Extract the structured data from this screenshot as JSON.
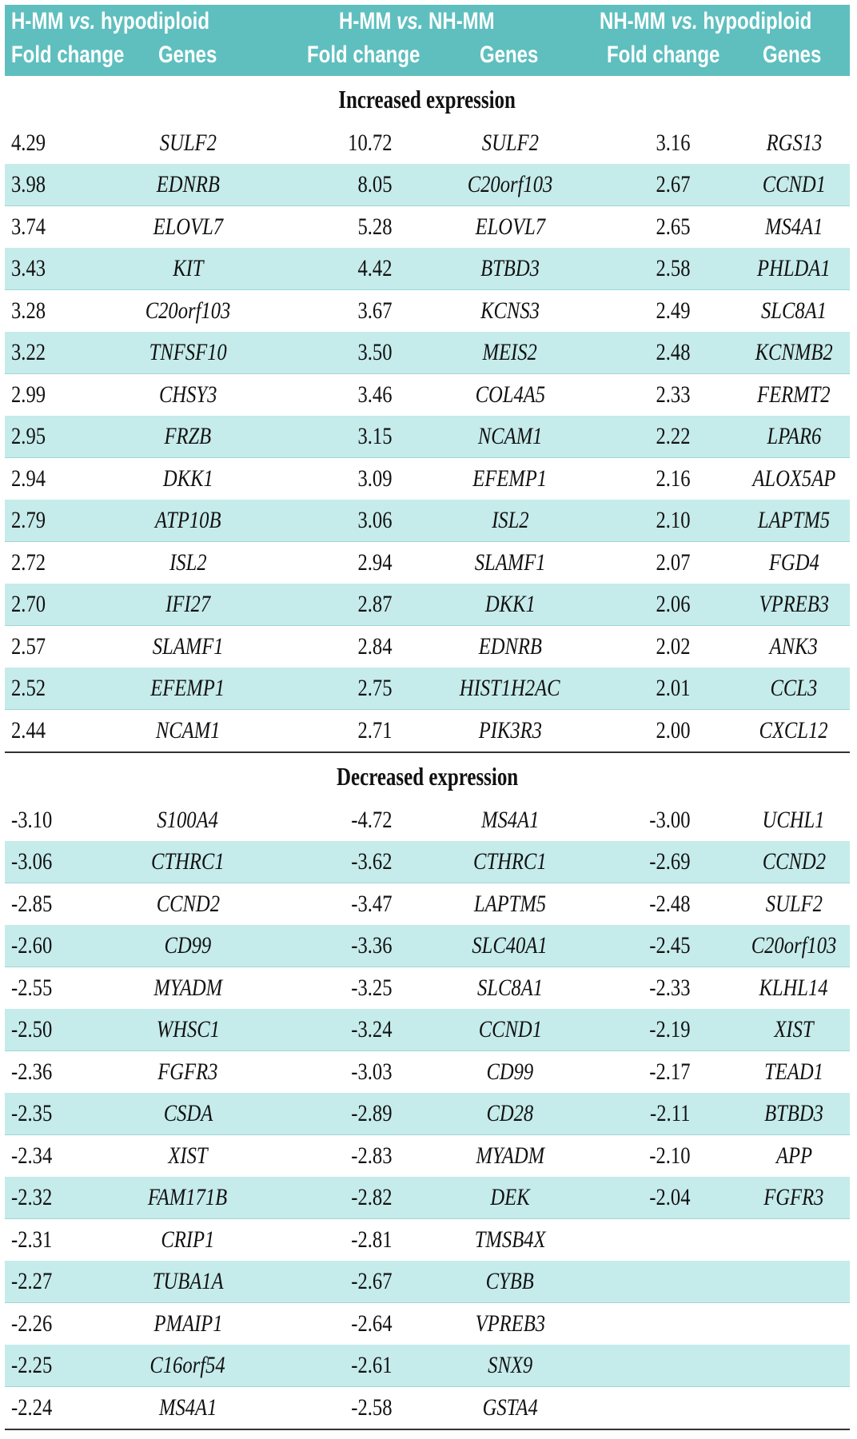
{
  "header": {
    "groups": [
      {
        "a": "H-MM ",
        "vs": "vs.",
        "b": " hypodiploid"
      },
      {
        "a": "H-MM ",
        "vs": "vs.",
        "b": " NH-MM"
      },
      {
        "a": "NH-MM ",
        "vs": "vs.",
        "b": " hypodiploid"
      }
    ],
    "fold_change": "Fold change",
    "genes": "Genes"
  },
  "colors": {
    "header_bg": "#5fbfbf",
    "stripe": "#c6ebeb"
  },
  "sections": [
    {
      "title": "Increased expression",
      "rows": [
        [
          "4.29",
          "SULF2",
          "10.72",
          "SULF2",
          "3.16",
          "RGS13"
        ],
        [
          "3.98",
          "EDNRB",
          "8.05",
          "C20orf103",
          "2.67",
          "CCND1"
        ],
        [
          "3.74",
          "ELOVL7",
          "5.28",
          "ELOVL7",
          "2.65",
          "MS4A1"
        ],
        [
          "3.43",
          "KIT",
          "4.42",
          "BTBD3",
          "2.58",
          "PHLDA1"
        ],
        [
          "3.28",
          "C20orf103",
          "3.67",
          "KCNS3",
          "2.49",
          "SLC8A1"
        ],
        [
          "3.22",
          "TNFSF10",
          "3.50",
          "MEIS2",
          "2.48",
          "KCNMB2"
        ],
        [
          "2.99",
          "CHSY3",
          "3.46",
          "COL4A5",
          "2.33",
          "FERMT2"
        ],
        [
          "2.95",
          "FRZB",
          "3.15",
          "NCAM1",
          "2.22",
          "LPAR6"
        ],
        [
          "2.94",
          "DKK1",
          "3.09",
          "EFEMP1",
          "2.16",
          "ALOX5AP"
        ],
        [
          "2.79",
          "ATP10B",
          "3.06",
          "ISL2",
          "2.10",
          "LAPTM5"
        ],
        [
          "2.72",
          "ISL2",
          "2.94",
          "SLAMF1",
          "2.07",
          "FGD4"
        ],
        [
          "2.70",
          "IFI27",
          "2.87",
          "DKK1",
          "2.06",
          "VPREB3"
        ],
        [
          "2.57",
          "SLAMF1",
          "2.84",
          "EDNRB",
          "2.02",
          "ANK3"
        ],
        [
          "2.52",
          "EFEMP1",
          "2.75",
          "HIST1H2AC",
          "2.01",
          "CCL3"
        ],
        [
          "2.44",
          "NCAM1",
          "2.71",
          "PIK3R3",
          "2.00",
          "CXCL12"
        ]
      ]
    },
    {
      "title": "Decreased expression",
      "rows": [
        [
          "-3.10",
          "S100A4",
          "-4.72",
          "MS4A1",
          "-3.00",
          "UCHL1"
        ],
        [
          "-3.06",
          "CTHRC1",
          "-3.62",
          "CTHRC1",
          "-2.69",
          "CCND2"
        ],
        [
          "-2.85",
          "CCND2",
          "-3.47",
          "LAPTM5",
          "-2.48",
          "SULF2"
        ],
        [
          "-2.60",
          "CD99",
          "-3.36",
          "SLC40A1",
          "-2.45",
          "C20orf103"
        ],
        [
          "-2.55",
          "MYADM",
          "-3.25",
          "SLC8A1",
          "-2.33",
          "KLHL14"
        ],
        [
          "-2.50",
          "WHSC1",
          "-3.24",
          "CCND1",
          "-2.19",
          "XIST"
        ],
        [
          "-2.36",
          "FGFR3",
          "-3.03",
          "CD99",
          "-2.17",
          "TEAD1"
        ],
        [
          "-2.35",
          "CSDA",
          "-2.89",
          "CD28",
          "-2.11",
          "BTBD3"
        ],
        [
          "-2.34",
          "XIST",
          "-2.83",
          "MYADM",
          "-2.10",
          "APP"
        ],
        [
          "-2.32",
          "FAM171B",
          "-2.82",
          "DEK",
          "-2.04",
          "FGFR3"
        ],
        [
          "-2.31",
          "CRIP1",
          "-2.81",
          "TMSB4X",
          "",
          ""
        ],
        [
          "-2.27",
          "TUBA1A",
          "-2.67",
          "CYBB",
          "",
          ""
        ],
        [
          "-2.26",
          "PMAIP1",
          "-2.64",
          "VPREB3",
          "",
          ""
        ],
        [
          "-2.25",
          "C16orf54",
          "-2.61",
          "SNX9",
          "",
          ""
        ],
        [
          "-2.24",
          "MS4A1",
          "-2.58",
          "GSTA4",
          "",
          ""
        ]
      ]
    }
  ]
}
